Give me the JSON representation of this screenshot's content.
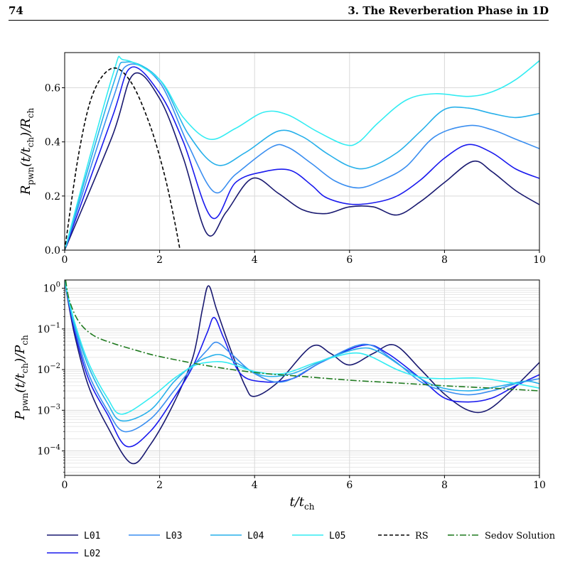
{
  "page": {
    "chapter_number": "74",
    "chapter_title": "3. The Reverberation Phase in 1D"
  },
  "colors": {
    "L01": "#191970",
    "L02": "#1a1aee",
    "L03": "#3a8ef0",
    "L04": "#27b0ea",
    "L05": "#33ecf2",
    "RS": "#000000",
    "Sedov": "#1f7a1f",
    "grid": "#d9d9d9"
  },
  "chart_data": [
    {
      "type": "line",
      "panel": "top",
      "ylabel": "R_pwn(t/t_ch)/R_ch",
      "xlim": [
        0,
        10
      ],
      "ylim": [
        0,
        0.73
      ],
      "xticks": [
        "0",
        "2",
        "4",
        "6",
        "8",
        "10"
      ],
      "yticks": [
        "0.0",
        "0.2",
        "0.4",
        "0.6"
      ],
      "grid": true,
      "series": [
        {
          "name": "L01",
          "points": [
            [
              0,
              0
            ],
            [
              1.0,
              0.42
            ],
            [
              1.45,
              0.65
            ],
            [
              2.0,
              0.56
            ],
            [
              2.5,
              0.34
            ],
            [
              3.0,
              0.06
            ],
            [
              3.4,
              0.14
            ],
            [
              3.95,
              0.265
            ],
            [
              4.5,
              0.21
            ],
            [
              5.0,
              0.15
            ],
            [
              5.5,
              0.135
            ],
            [
              6.0,
              0.16
            ],
            [
              6.5,
              0.16
            ],
            [
              7.0,
              0.13
            ],
            [
              7.5,
              0.18
            ],
            [
              8.0,
              0.25
            ],
            [
              8.6,
              0.328
            ],
            [
              9.0,
              0.29
            ],
            [
              9.5,
              0.22
            ],
            [
              10,
              0.168
            ]
          ]
        },
        {
          "name": "L02",
          "points": [
            [
              0,
              0
            ],
            [
              1.0,
              0.49
            ],
            [
              1.4,
              0.675
            ],
            [
              2.0,
              0.58
            ],
            [
              2.5,
              0.4
            ],
            [
              3.1,
              0.12
            ],
            [
              3.6,
              0.25
            ],
            [
              4.2,
              0.29
            ],
            [
              4.75,
              0.295
            ],
            [
              5.2,
              0.24
            ],
            [
              5.5,
              0.195
            ],
            [
              6.0,
              0.17
            ],
            [
              6.5,
              0.175
            ],
            [
              7.0,
              0.2
            ],
            [
              7.5,
              0.26
            ],
            [
              8.0,
              0.34
            ],
            [
              8.5,
              0.39
            ],
            [
              9.0,
              0.36
            ],
            [
              9.5,
              0.3
            ],
            [
              10,
              0.265
            ]
          ]
        },
        {
          "name": "L03",
          "points": [
            [
              0,
              0
            ],
            [
              1.0,
              0.55
            ],
            [
              1.35,
              0.685
            ],
            [
              2.0,
              0.62
            ],
            [
              2.6,
              0.39
            ],
            [
              3.15,
              0.215
            ],
            [
              3.6,
              0.28
            ],
            [
              4.35,
              0.38
            ],
            [
              4.7,
              0.38
            ],
            [
              5.2,
              0.32
            ],
            [
              5.7,
              0.255
            ],
            [
              6.2,
              0.23
            ],
            [
              6.7,
              0.26
            ],
            [
              7.2,
              0.31
            ],
            [
              7.8,
              0.42
            ],
            [
              8.5,
              0.46
            ],
            [
              9.0,
              0.445
            ],
            [
              9.5,
              0.41
            ],
            [
              10,
              0.375
            ]
          ]
        },
        {
          "name": "L04",
          "points": [
            [
              0,
              0
            ],
            [
              1.0,
              0.6
            ],
            [
              1.3,
              0.695
            ],
            [
              2.0,
              0.63
            ],
            [
              2.6,
              0.43
            ],
            [
              3.2,
              0.315
            ],
            [
              3.8,
              0.36
            ],
            [
              4.5,
              0.44
            ],
            [
              5.0,
              0.42
            ],
            [
              5.5,
              0.36
            ],
            [
              6.0,
              0.31
            ],
            [
              6.4,
              0.305
            ],
            [
              7.0,
              0.36
            ],
            [
              7.5,
              0.44
            ],
            [
              8.0,
              0.52
            ],
            [
              8.5,
              0.525
            ],
            [
              9.0,
              0.505
            ],
            [
              9.5,
              0.49
            ],
            [
              10,
              0.505
            ]
          ]
        },
        {
          "name": "L05",
          "points": [
            [
              0,
              0
            ],
            [
              1.0,
              0.64
            ],
            [
              1.25,
              0.703
            ],
            [
              2.0,
              0.63
            ],
            [
              2.5,
              0.49
            ],
            [
              3.05,
              0.41
            ],
            [
              3.6,
              0.45
            ],
            [
              4.2,
              0.51
            ],
            [
              4.7,
              0.5
            ],
            [
              5.3,
              0.44
            ],
            [
              5.9,
              0.39
            ],
            [
              6.2,
              0.4
            ],
            [
              6.6,
              0.47
            ],
            [
              7.2,
              0.555
            ],
            [
              7.8,
              0.578
            ],
            [
              8.5,
              0.568
            ],
            [
              9.0,
              0.585
            ],
            [
              9.5,
              0.63
            ],
            [
              10,
              0.7
            ]
          ]
        },
        {
          "name": "RS",
          "points": [
            [
              0,
              0
            ],
            [
              0.3,
              0.36
            ],
            [
              0.6,
              0.58
            ],
            [
              1.0,
              0.672
            ],
            [
              1.4,
              0.62
            ],
            [
              1.8,
              0.46
            ],
            [
              2.1,
              0.28
            ],
            [
              2.3,
              0.12
            ],
            [
              2.43,
              0.0
            ]
          ]
        }
      ]
    },
    {
      "type": "line",
      "panel": "bottom",
      "scale_y": "log",
      "xlabel": "t/t_ch",
      "ylabel": "P_pwn(t/t_ch)/P_ch",
      "xlim": [
        0,
        10
      ],
      "ylim": [
        2.5e-05,
        1.6
      ],
      "xticks": [
        "0",
        "2",
        "4",
        "6",
        "8",
        "10"
      ],
      "yticks": [
        "10^0",
        "10^-1",
        "10^-2",
        "10^-3",
        "10^-4"
      ],
      "grid": true,
      "series": [
        {
          "name": "L01",
          "points": [
            [
              0,
              1.5
            ],
            [
              0.2,
              0.08
            ],
            [
              0.5,
              0.004
            ],
            [
              0.9,
              0.0004
            ],
            [
              1.4,
              5e-05
            ],
            [
              1.8,
              0.00014
            ],
            [
              2.3,
              0.0015
            ],
            [
              2.7,
              0.02
            ],
            [
              2.9,
              0.3
            ],
            [
              3.03,
              1.15
            ],
            [
              3.2,
              0.3
            ],
            [
              3.5,
              0.03
            ],
            [
              3.8,
              0.004
            ],
            [
              4.0,
              0.0022
            ],
            [
              4.5,
              0.005
            ],
            [
              5.2,
              0.037
            ],
            [
              5.6,
              0.025
            ],
            [
              6.0,
              0.013
            ],
            [
              6.5,
              0.025
            ],
            [
              6.95,
              0.04
            ],
            [
              7.5,
              0.01
            ],
            [
              8.0,
              0.0025
            ],
            [
              8.5,
              0.001
            ],
            [
              8.9,
              0.001
            ],
            [
              9.4,
              0.003
            ],
            [
              10,
              0.015
            ]
          ]
        },
        {
          "name": "L02",
          "points": [
            [
              0,
              1.5
            ],
            [
              0.2,
              0.1
            ],
            [
              0.5,
              0.006
            ],
            [
              0.9,
              0.0008
            ],
            [
              1.3,
              0.00013
            ],
            [
              1.8,
              0.0003
            ],
            [
              2.3,
              0.002
            ],
            [
              2.7,
              0.012
            ],
            [
              3.0,
              0.08
            ],
            [
              3.15,
              0.19
            ],
            [
              3.35,
              0.06
            ],
            [
              3.7,
              0.008
            ],
            [
              4.2,
              0.005
            ],
            [
              4.8,
              0.006
            ],
            [
              5.4,
              0.015
            ],
            [
              6.3,
              0.04
            ],
            [
              6.8,
              0.025
            ],
            [
              7.5,
              0.006
            ],
            [
              8.0,
              0.002
            ],
            [
              8.5,
              0.0016
            ],
            [
              9.0,
              0.002
            ],
            [
              9.5,
              0.004
            ],
            [
              10,
              0.0075
            ]
          ]
        },
        {
          "name": "L03",
          "points": [
            [
              0,
              1.5
            ],
            [
              0.2,
              0.12
            ],
            [
              0.5,
              0.008
            ],
            [
              0.9,
              0.001
            ],
            [
              1.25,
              0.0003
            ],
            [
              1.8,
              0.0006
            ],
            [
              2.3,
              0.003
            ],
            [
              2.7,
              0.012
            ],
            [
              3.0,
              0.03
            ],
            [
              3.2,
              0.047
            ],
            [
              3.5,
              0.025
            ],
            [
              4.0,
              0.008
            ],
            [
              4.6,
              0.005
            ],
            [
              5.4,
              0.015
            ],
            [
              6.3,
              0.042
            ],
            [
              6.9,
              0.018
            ],
            [
              7.5,
              0.005
            ],
            [
              8.0,
              0.003
            ],
            [
              8.5,
              0.0024
            ],
            [
              9.0,
              0.003
            ],
            [
              9.5,
              0.0045
            ],
            [
              10,
              0.006
            ]
          ]
        },
        {
          "name": "L04",
          "points": [
            [
              0,
              1.5
            ],
            [
              0.2,
              0.14
            ],
            [
              0.5,
              0.012
            ],
            [
              0.9,
              0.0015
            ],
            [
              1.2,
              0.00055
            ],
            [
              1.8,
              0.001
            ],
            [
              2.3,
              0.005
            ],
            [
              2.7,
              0.013
            ],
            [
              3.0,
              0.02
            ],
            [
              3.3,
              0.023
            ],
            [
              3.7,
              0.013
            ],
            [
              4.2,
              0.007
            ],
            [
              4.8,
              0.008
            ],
            [
              5.5,
              0.018
            ],
            [
              6.2,
              0.033
            ],
            [
              6.6,
              0.028
            ],
            [
              7.2,
              0.01
            ],
            [
              7.8,
              0.004
            ],
            [
              8.5,
              0.003
            ],
            [
              9.2,
              0.004
            ],
            [
              9.7,
              0.0052
            ],
            [
              10,
              0.0045
            ]
          ]
        },
        {
          "name": "L05",
          "points": [
            [
              0,
              1.5
            ],
            [
              0.2,
              0.16
            ],
            [
              0.5,
              0.015
            ],
            [
              0.9,
              0.002
            ],
            [
              1.2,
              0.0008
            ],
            [
              1.8,
              0.002
            ],
            [
              2.3,
              0.006
            ],
            [
              2.7,
              0.012
            ],
            [
              3.0,
              0.015
            ],
            [
              3.4,
              0.015
            ],
            [
              4.0,
              0.009
            ],
            [
              4.6,
              0.008
            ],
            [
              5.3,
              0.015
            ],
            [
              6.0,
              0.025
            ],
            [
              6.4,
              0.022
            ],
            [
              7.0,
              0.01
            ],
            [
              7.5,
              0.0065
            ],
            [
              8.0,
              0.006
            ],
            [
              8.7,
              0.0062
            ],
            [
              9.3,
              0.005
            ],
            [
              10,
              0.0035
            ]
          ]
        },
        {
          "name": "Sedov Solution",
          "points": [
            [
              0.02,
              1.6
            ],
            [
              0.1,
              0.5
            ],
            [
              0.3,
              0.15
            ],
            [
              0.6,
              0.07
            ],
            [
              1.0,
              0.045
            ],
            [
              1.5,
              0.03
            ],
            [
              2.0,
              0.021
            ],
            [
              3.0,
              0.0125
            ],
            [
              4.0,
              0.0085
            ],
            [
              5.0,
              0.0068
            ],
            [
              6.0,
              0.0055
            ],
            [
              7.0,
              0.0047
            ],
            [
              8.0,
              0.004
            ],
            [
              9.0,
              0.0035
            ],
            [
              10,
              0.003
            ]
          ]
        }
      ]
    }
  ],
  "legend": {
    "items": [
      {
        "key": "L01",
        "label": "L01",
        "style": "solid"
      },
      {
        "key": "L03",
        "label": "L03",
        "style": "solid"
      },
      {
        "key": "L04",
        "label": "L04",
        "style": "solid"
      },
      {
        "key": "L05",
        "label": "L05",
        "style": "solid"
      },
      {
        "key": "RS",
        "label": "RS",
        "style": "dashed"
      },
      {
        "key": "Sedov",
        "label": "Sedov Solution",
        "style": "dashdot"
      },
      {
        "key": "L02",
        "label": "L02",
        "style": "solid"
      }
    ]
  }
}
